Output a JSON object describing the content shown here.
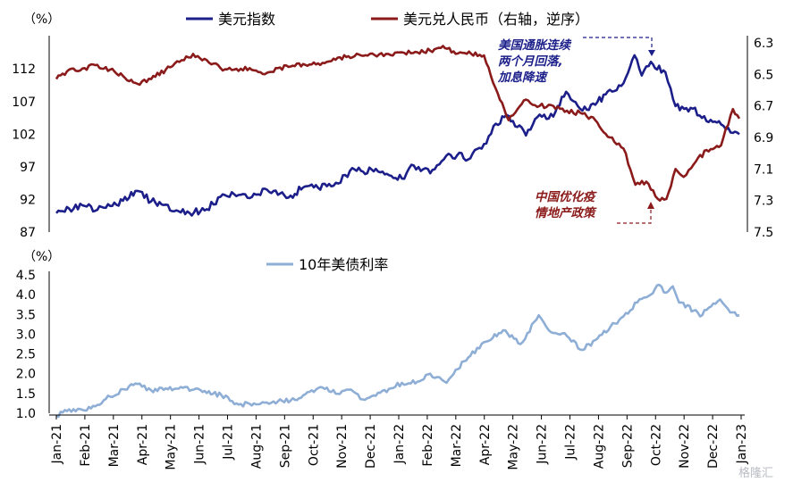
{
  "chart_data": [
    {
      "type": "line",
      "left_unit_label": "（%）",
      "y_left": {
        "ticks": [
          87,
          92,
          97,
          102,
          107,
          112
        ],
        "lim": [
          87,
          116
        ]
      },
      "y_right": {
        "ticks": [
          "6.3",
          "6.5",
          "6.7",
          "6.9",
          "7.1",
          "7.3",
          "7.5"
        ],
        "lim": [
          6.3,
          7.5
        ],
        "inverted": true
      },
      "series": [
        {
          "name": "美元指数",
          "axis": "left",
          "color": "#1c1f8a",
          "points": [
            [
              "2021-01-01",
              89.9
            ],
            [
              "2021-01-15",
              90.6
            ],
            [
              "2021-02-01",
              91.0
            ],
            [
              "2021-02-15",
              90.4
            ],
            [
              "2021-03-01",
              91.0
            ],
            [
              "2021-03-15",
              91.8
            ],
            [
              "2021-03-31",
              93.3
            ],
            [
              "2021-04-15",
              91.7
            ],
            [
              "2021-05-01",
              91.2
            ],
            [
              "2021-05-15",
              90.2
            ],
            [
              "2021-06-01",
              90.0
            ],
            [
              "2021-06-15",
              90.5
            ],
            [
              "2021-06-30",
              92.4
            ],
            [
              "2021-07-15",
              92.8
            ],
            [
              "2021-08-01",
              92.2
            ],
            [
              "2021-08-20",
              93.5
            ],
            [
              "2021-09-01",
              92.7
            ],
            [
              "2021-09-15",
              92.6
            ],
            [
              "2021-10-01",
              94.0
            ],
            [
              "2021-10-15",
              93.8
            ],
            [
              "2021-11-01",
              94.1
            ],
            [
              "2021-11-24",
              96.6
            ],
            [
              "2021-12-15",
              96.3
            ],
            [
              "2022-01-01",
              95.7
            ],
            [
              "2022-01-15",
              95.2
            ],
            [
              "2022-01-28",
              97.2
            ],
            [
              "2022-02-15",
              96.0
            ],
            [
              "2022-03-07",
              99.0
            ],
            [
              "2022-03-31",
              98.3
            ],
            [
              "2022-04-15",
              100.5
            ],
            [
              "2022-04-28",
              103.6
            ],
            [
              "2022-05-12",
              104.8
            ],
            [
              "2022-05-31",
              101.8
            ],
            [
              "2022-06-15",
              105.0
            ],
            [
              "2022-06-30",
              104.7
            ],
            [
              "2022-07-14",
              108.5
            ],
            [
              "2022-08-01",
              105.6
            ],
            [
              "2022-08-15",
              106.5
            ],
            [
              "2022-08-31",
              108.8
            ],
            [
              "2022-09-15",
              109.8
            ],
            [
              "2022-09-27",
              114.1
            ],
            [
              "2022-10-05",
              111.0
            ],
            [
              "2022-10-15",
              113.1
            ],
            [
              "2022-10-31",
              111.5
            ],
            [
              "2022-11-11",
              106.3
            ],
            [
              "2022-11-30",
              105.9
            ],
            [
              "2022-12-15",
              104.0
            ],
            [
              "2022-12-31",
              103.5
            ],
            [
              "2023-01-13",
              102.2
            ],
            [
              "2023-01-20",
              102.0
            ]
          ]
        },
        {
          "name": "美元兑人民币（右轴，逆序）",
          "axis": "right",
          "color": "#8b1a1a",
          "points": [
            [
              "2021-01-01",
              6.53
            ],
            [
              "2021-01-15",
              6.47
            ],
            [
              "2021-02-01",
              6.46
            ],
            [
              "2021-02-15",
              6.44
            ],
            [
              "2021-03-01",
              6.47
            ],
            [
              "2021-03-15",
              6.51
            ],
            [
              "2021-03-31",
              6.56
            ],
            [
              "2021-04-15",
              6.53
            ],
            [
              "2021-05-01",
              6.47
            ],
            [
              "2021-05-31",
              6.37
            ],
            [
              "2021-06-15",
              6.41
            ],
            [
              "2021-06-30",
              6.46
            ],
            [
              "2021-07-15",
              6.47
            ],
            [
              "2021-08-01",
              6.46
            ],
            [
              "2021-08-20",
              6.49
            ],
            [
              "2021-09-01",
              6.46
            ],
            [
              "2021-09-15",
              6.45
            ],
            [
              "2021-10-01",
              6.44
            ],
            [
              "2021-10-15",
              6.43
            ],
            [
              "2021-11-01",
              6.4
            ],
            [
              "2021-11-15",
              6.39
            ],
            [
              "2021-12-01",
              6.38
            ],
            [
              "2021-12-31",
              6.37
            ],
            [
              "2022-01-15",
              6.36
            ],
            [
              "2022-02-01",
              6.36
            ],
            [
              "2022-02-15",
              6.35
            ],
            [
              "2022-03-01",
              6.32
            ],
            [
              "2022-03-15",
              6.37
            ],
            [
              "2022-04-01",
              6.37
            ],
            [
              "2022-04-15",
              6.38
            ],
            [
              "2022-04-30",
              6.62
            ],
            [
              "2022-05-12",
              6.79
            ],
            [
              "2022-05-31",
              6.66
            ],
            [
              "2022-06-15",
              6.7
            ],
            [
              "2022-06-30",
              6.7
            ],
            [
              "2022-07-15",
              6.73
            ],
            [
              "2022-08-01",
              6.75
            ],
            [
              "2022-08-15",
              6.79
            ],
            [
              "2022-08-31",
              6.9
            ],
            [
              "2022-09-15",
              6.97
            ],
            [
              "2022-09-28",
              7.2
            ],
            [
              "2022-10-10",
              7.18
            ],
            [
              "2022-10-25",
              7.3
            ],
            [
              "2022-11-01",
              7.29
            ],
            [
              "2022-11-11",
              7.1
            ],
            [
              "2022-11-20",
              7.15
            ],
            [
              "2022-12-01",
              7.07
            ],
            [
              "2022-12-15",
              6.98
            ],
            [
              "2022-12-31",
              6.95
            ],
            [
              "2023-01-13",
              6.72
            ],
            [
              "2023-01-20",
              6.78
            ]
          ]
        }
      ],
      "annotations": [
        {
          "lines": [
            "美国通胀连续",
            "两个月回落,",
            "加息降速"
          ],
          "color": "#1c1f8a"
        },
        {
          "lines": [
            "中国优化疫",
            "情地产政策"
          ],
          "color": "#8b1a1a"
        }
      ]
    },
    {
      "type": "line",
      "left_unit_label": "（%）",
      "y_left": {
        "ticks": [
          "1.0",
          "1.5",
          "2.0",
          "2.5",
          "3.0",
          "3.5",
          "4.0",
          "4.5"
        ],
        "lim": [
          1.0,
          4.5
        ]
      },
      "series": [
        {
          "name": "10年美债利率",
          "axis": "left",
          "color": "#8eaed6",
          "points": [
            [
              "2021-01-01",
              0.93
            ],
            [
              "2021-01-15",
              1.1
            ],
            [
              "2021-02-01",
              1.07
            ],
            [
              "2021-02-15",
              1.21
            ],
            [
              "2021-03-01",
              1.42
            ],
            [
              "2021-03-15",
              1.61
            ],
            [
              "2021-03-31",
              1.74
            ],
            [
              "2021-04-15",
              1.58
            ],
            [
              "2021-05-01",
              1.63
            ],
            [
              "2021-05-15",
              1.62
            ],
            [
              "2021-06-01",
              1.6
            ],
            [
              "2021-06-15",
              1.51
            ],
            [
              "2021-07-01",
              1.46
            ],
            [
              "2021-07-20",
              1.22
            ],
            [
              "2021-08-01",
              1.24
            ],
            [
              "2021-08-15",
              1.28
            ],
            [
              "2021-09-01",
              1.3
            ],
            [
              "2021-09-15",
              1.32
            ],
            [
              "2021-10-01",
              1.48
            ],
            [
              "2021-10-20",
              1.65
            ],
            [
              "2021-11-08",
              1.49
            ],
            [
              "2021-11-20",
              1.6
            ],
            [
              "2021-12-03",
              1.35
            ],
            [
              "2021-12-15",
              1.45
            ],
            [
              "2022-01-03",
              1.63
            ],
            [
              "2022-01-15",
              1.77
            ],
            [
              "2022-02-01",
              1.8
            ],
            [
              "2022-02-15",
              2.0
            ],
            [
              "2022-03-05",
              1.77
            ],
            [
              "2022-03-15",
              2.1
            ],
            [
              "2022-03-31",
              2.45
            ],
            [
              "2022-04-15",
              2.8
            ],
            [
              "2022-05-06",
              3.1
            ],
            [
              "2022-05-25",
              2.75
            ],
            [
              "2022-06-14",
              3.48
            ],
            [
              "2022-06-25",
              3.1
            ],
            [
              "2022-07-15",
              2.95
            ],
            [
              "2022-08-01",
              2.6
            ],
            [
              "2022-08-15",
              2.85
            ],
            [
              "2022-09-01",
              3.2
            ],
            [
              "2022-09-15",
              3.45
            ],
            [
              "2022-09-30",
              3.8
            ],
            [
              "2022-10-15",
              4.0
            ],
            [
              "2022-10-24",
              4.25
            ],
            [
              "2022-11-01",
              4.05
            ],
            [
              "2022-11-08",
              4.21
            ],
            [
              "2022-11-15",
              3.8
            ],
            [
              "2022-12-01",
              3.6
            ],
            [
              "2022-12-08",
              3.45
            ],
            [
              "2022-12-20",
              3.7
            ],
            [
              "2022-12-30",
              3.88
            ],
            [
              "2023-01-10",
              3.55
            ],
            [
              "2023-01-20",
              3.48
            ]
          ]
        }
      ]
    }
  ],
  "x_axis": {
    "labels": [
      "Jan-21",
      "Feb-21",
      "Mar-21",
      "Apr-21",
      "May-21",
      "Jun-21",
      "Jul-21",
      "Aug-21",
      "Sep-21",
      "Oct-21",
      "Nov-21",
      "Dec-21",
      "Jan-22",
      "Feb-22",
      "Mar-22",
      "Apr-22",
      "May-22",
      "Jun-22",
      "Jul-22",
      "Aug-22",
      "Sep-22",
      "Oct-22",
      "Nov-22",
      "Dec-22",
      "Jan-23"
    ],
    "range": [
      "2021-01-01",
      "2023-01-22"
    ]
  },
  "watermark": "格隆汇"
}
